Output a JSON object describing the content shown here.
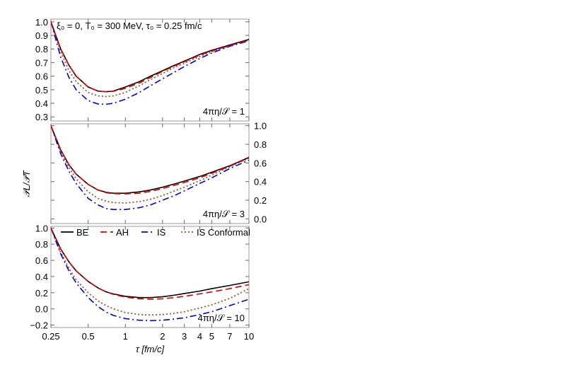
{
  "chart_data": {
    "type": "line",
    "header_annotation": "ξ₀ = 0, T₀ = 300 MeV, τ₀ = 0.25 fm/c",
    "xlabel": "τ [fm/c]",
    "ylabel": "𝒫L/𝒫T",
    "x_scale": "log",
    "xlim": [
      0.25,
      10
    ],
    "x_ticks": [
      0.25,
      0.5,
      1,
      2,
      3,
      4,
      5,
      7,
      10
    ],
    "x_tick_labels": [
      "0.25",
      "0.5",
      "1",
      "2",
      "3",
      "4",
      "5",
      "7",
      "10"
    ],
    "legend": {
      "placement": "top of bottom panel",
      "entries": [
        {
          "name": "BE",
          "color": "#000000",
          "style": "solid"
        },
        {
          "name": "AH",
          "color": "#dd0000",
          "style": "dashed"
        },
        {
          "name": "IS",
          "color": "#0000dd",
          "style": "dashdot"
        },
        {
          "name": "IS Conformal",
          "color": "#a0522d",
          "style": "dotted"
        }
      ]
    },
    "panels": [
      {
        "label": "4πη/𝒮 = 1",
        "y_axis_side": "left",
        "ylim": [
          0.27,
          1.02
        ],
        "y_ticks": [
          0.3,
          0.4,
          0.5,
          0.6,
          0.7,
          0.8,
          0.9,
          1.0
        ],
        "y_tick_labels": [
          "0.3",
          "0.4",
          "0.5",
          "0.6",
          "0.7",
          "0.8",
          "0.9",
          "1.0"
        ],
        "series": [
          {
            "name": "BE",
            "x": [
              0.25,
              0.3,
              0.35,
              0.4,
              0.5,
              0.6,
              0.7,
              0.8,
              1,
              1.3,
              1.6,
              2,
              2.5,
              3,
              4,
              5,
              7,
              10
            ],
            "y": [
              1.0,
              0.8,
              0.68,
              0.6,
              0.52,
              0.49,
              0.485,
              0.49,
              0.52,
              0.56,
              0.6,
              0.64,
              0.68,
              0.71,
              0.76,
              0.79,
              0.83,
              0.87
            ]
          },
          {
            "name": "AH",
            "x": [
              0.25,
              0.3,
              0.35,
              0.4,
              0.5,
              0.6,
              0.7,
              0.8,
              1,
              1.3,
              1.6,
              2,
              2.5,
              3,
              4,
              5,
              7,
              10
            ],
            "y": [
              1.0,
              0.8,
              0.68,
              0.6,
              0.52,
              0.49,
              0.485,
              0.488,
              0.51,
              0.55,
              0.59,
              0.635,
              0.675,
              0.705,
              0.755,
              0.785,
              0.825,
              0.865
            ]
          },
          {
            "name": "IS",
            "x": [
              0.25,
              0.3,
              0.35,
              0.4,
              0.5,
              0.6,
              0.7,
              0.8,
              1,
              1.3,
              1.6,
              2,
              2.5,
              3,
              4,
              5,
              7,
              10
            ],
            "y": [
              1.0,
              0.74,
              0.59,
              0.5,
              0.42,
              0.395,
              0.393,
              0.4,
              0.43,
              0.48,
              0.53,
              0.58,
              0.63,
              0.67,
              0.73,
              0.77,
              0.82,
              0.86
            ]
          },
          {
            "name": "IS Conformal",
            "x": [
              0.25,
              0.3,
              0.35,
              0.4,
              0.5,
              0.6,
              0.7,
              0.8,
              1,
              1.3,
              1.6,
              2,
              2.5,
              3,
              4,
              5,
              7,
              10
            ],
            "y": [
              1.0,
              0.78,
              0.64,
              0.56,
              0.48,
              0.455,
              0.45,
              0.455,
              0.48,
              0.53,
              0.575,
              0.62,
              0.665,
              0.695,
              0.745,
              0.78,
              0.825,
              0.865
            ]
          }
        ]
      },
      {
        "label": "4πη/𝒮 = 3",
        "y_axis_side": "right",
        "ylim": [
          -0.05,
          1.02
        ],
        "y_ticks": [
          0.0,
          0.2,
          0.4,
          0.6,
          0.8,
          1.0
        ],
        "y_tick_labels": [
          "0.0",
          "0.2",
          "0.4",
          "0.6",
          "0.8",
          "1.0"
        ],
        "series": [
          {
            "name": "BE",
            "x": [
              0.25,
              0.3,
              0.35,
              0.4,
              0.5,
              0.6,
              0.7,
              0.8,
              1,
              1.3,
              1.6,
              2,
              2.5,
              3,
              4,
              5,
              7,
              10
            ],
            "y": [
              1.0,
              0.74,
              0.58,
              0.48,
              0.37,
              0.31,
              0.285,
              0.275,
              0.275,
              0.29,
              0.31,
              0.34,
              0.375,
              0.405,
              0.455,
              0.5,
              0.57,
              0.66
            ]
          },
          {
            "name": "AH",
            "x": [
              0.25,
              0.3,
              0.35,
              0.4,
              0.5,
              0.6,
              0.7,
              0.8,
              1,
              1.3,
              1.6,
              2,
              2.5,
              3,
              4,
              5,
              7,
              10
            ],
            "y": [
              1.0,
              0.74,
              0.58,
              0.48,
              0.37,
              0.31,
              0.28,
              0.27,
              0.268,
              0.275,
              0.295,
              0.325,
              0.36,
              0.39,
              0.44,
              0.49,
              0.565,
              0.655
            ]
          },
          {
            "name": "IS",
            "x": [
              0.25,
              0.3,
              0.35,
              0.4,
              0.5,
              0.6,
              0.7,
              0.8,
              1,
              1.3,
              1.6,
              2,
              2.5,
              3,
              4,
              5,
              7,
              10
            ],
            "y": [
              1.0,
              0.7,
              0.51,
              0.38,
              0.22,
              0.15,
              0.11,
              0.1,
              0.1,
              0.12,
              0.15,
              0.2,
              0.25,
              0.3,
              0.38,
              0.44,
              0.54,
              0.63
            ]
          },
          {
            "name": "IS Conformal",
            "x": [
              0.25,
              0.3,
              0.35,
              0.4,
              0.5,
              0.6,
              0.7,
              0.8,
              1,
              1.3,
              1.6,
              2,
              2.5,
              3,
              4,
              5,
              7,
              10
            ],
            "y": [
              1.0,
              0.72,
              0.55,
              0.43,
              0.29,
              0.22,
              0.19,
              0.175,
              0.17,
              0.185,
              0.21,
              0.25,
              0.3,
              0.34,
              0.41,
              0.47,
              0.56,
              0.65
            ]
          }
        ]
      },
      {
        "label": "4πη/𝒮 = 10",
        "y_axis_side": "left",
        "ylim": [
          -0.23,
          1.02
        ],
        "y_ticks": [
          -0.2,
          0.0,
          0.2,
          0.4,
          0.6,
          0.8,
          1.0
        ],
        "y_tick_labels": [
          "−0.2",
          "0.0",
          "0.2",
          "0.4",
          "0.6",
          "0.8",
          "1.0"
        ],
        "series": [
          {
            "name": "BE",
            "x": [
              0.25,
              0.3,
              0.35,
              0.4,
              0.5,
              0.6,
              0.7,
              0.8,
              1,
              1.3,
              1.6,
              2,
              2.5,
              3,
              4,
              5,
              7,
              10
            ],
            "y": [
              1.0,
              0.74,
              0.58,
              0.47,
              0.34,
              0.26,
              0.21,
              0.185,
              0.155,
              0.14,
              0.14,
              0.15,
              0.17,
              0.19,
              0.22,
              0.25,
              0.29,
              0.335
            ]
          },
          {
            "name": "AH",
            "x": [
              0.25,
              0.3,
              0.35,
              0.4,
              0.5,
              0.6,
              0.7,
              0.8,
              1,
              1.3,
              1.6,
              2,
              2.5,
              3,
              4,
              5,
              7,
              10
            ],
            "y": [
              1.0,
              0.74,
              0.58,
              0.47,
              0.34,
              0.26,
              0.21,
              0.18,
              0.145,
              0.125,
              0.12,
              0.125,
              0.14,
              0.155,
              0.185,
              0.21,
              0.25,
              0.3
            ]
          },
          {
            "name": "IS",
            "x": [
              0.25,
              0.3,
              0.35,
              0.4,
              0.5,
              0.6,
              0.7,
              0.8,
              1,
              1.3,
              1.6,
              2,
              2.5,
              3,
              4,
              5,
              7,
              10
            ],
            "y": [
              1.0,
              0.68,
              0.47,
              0.32,
              0.14,
              0.03,
              -0.04,
              -0.08,
              -0.12,
              -0.14,
              -0.145,
              -0.14,
              -0.125,
              -0.11,
              -0.07,
              -0.035,
              0.04,
              0.12
            ]
          },
          {
            "name": "IS Conformal",
            "x": [
              0.25,
              0.3,
              0.35,
              0.4,
              0.5,
              0.6,
              0.7,
              0.8,
              1,
              1.3,
              1.6,
              2,
              2.5,
              3,
              4,
              5,
              7,
              10
            ],
            "y": [
              1.0,
              0.7,
              0.5,
              0.36,
              0.2,
              0.1,
              0.04,
              0.0,
              -0.045,
              -0.07,
              -0.075,
              -0.07,
              -0.055,
              -0.035,
              0.01,
              0.05,
              0.13,
              0.25
            ]
          }
        ]
      }
    ]
  }
}
